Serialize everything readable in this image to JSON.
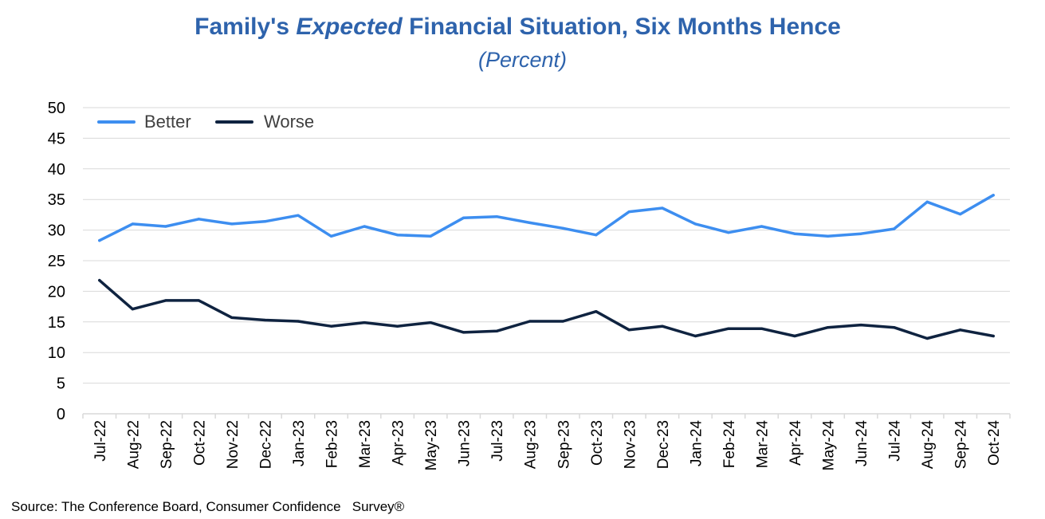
{
  "title": {
    "part1": "Family's ",
    "part2": "Expected",
    "part3": " Financial Situation, Six Months Hence",
    "subtitle": "(Percent)"
  },
  "source": "Source: The Conference Board, Consumer Confidence   Survey®",
  "colors": {
    "better": "#3D8EF0",
    "worse": "#0F2340",
    "grid": "#D9D9D9"
  },
  "chart_data": {
    "type": "line",
    "title": "Family's Expected Financial Situation, Six Months Hence",
    "subtitle": "(Percent)",
    "xlabel": "",
    "ylabel": "",
    "ylim": [
      0,
      50
    ],
    "yticks": [
      0,
      5,
      10,
      15,
      20,
      25,
      30,
      35,
      40,
      45,
      50
    ],
    "grid": true,
    "legend": "top-left",
    "categories": [
      "Jul-22",
      "Aug-22",
      "Sep-22",
      "Oct-22",
      "Nov-22",
      "Dec-22",
      "Jan-23",
      "Feb-23",
      "Mar-23",
      "Apr-23",
      "May-23",
      "Jun-23",
      "Jul-23",
      "Aug-23",
      "Sep-23",
      "Oct-23",
      "Nov-23",
      "Dec-23",
      "Jan-24",
      "Feb-24",
      "Mar-24",
      "Apr-24",
      "May-24",
      "Jun-24",
      "Jul-24",
      "Aug-24",
      "Sep-24",
      "Oct-24"
    ],
    "series": [
      {
        "name": "Better",
        "values": [
          28.3,
          31.0,
          30.6,
          31.8,
          31.0,
          31.4,
          32.4,
          29.0,
          30.6,
          29.2,
          29.0,
          32.0,
          32.2,
          31.2,
          30.3,
          29.2,
          33.0,
          33.6,
          31.0,
          29.6,
          30.6,
          29.4,
          29.0,
          29.4,
          30.2,
          34.6,
          32.6,
          35.7
        ]
      },
      {
        "name": "Worse",
        "values": [
          21.8,
          17.1,
          18.5,
          18.5,
          15.7,
          15.3,
          15.1,
          14.3,
          14.9,
          14.3,
          14.9,
          13.3,
          13.5,
          15.1,
          15.1,
          16.7,
          13.7,
          14.3,
          12.7,
          13.9,
          13.9,
          12.7,
          14.1,
          14.5,
          14.1,
          12.3,
          13.7,
          12.7
        ]
      }
    ]
  }
}
